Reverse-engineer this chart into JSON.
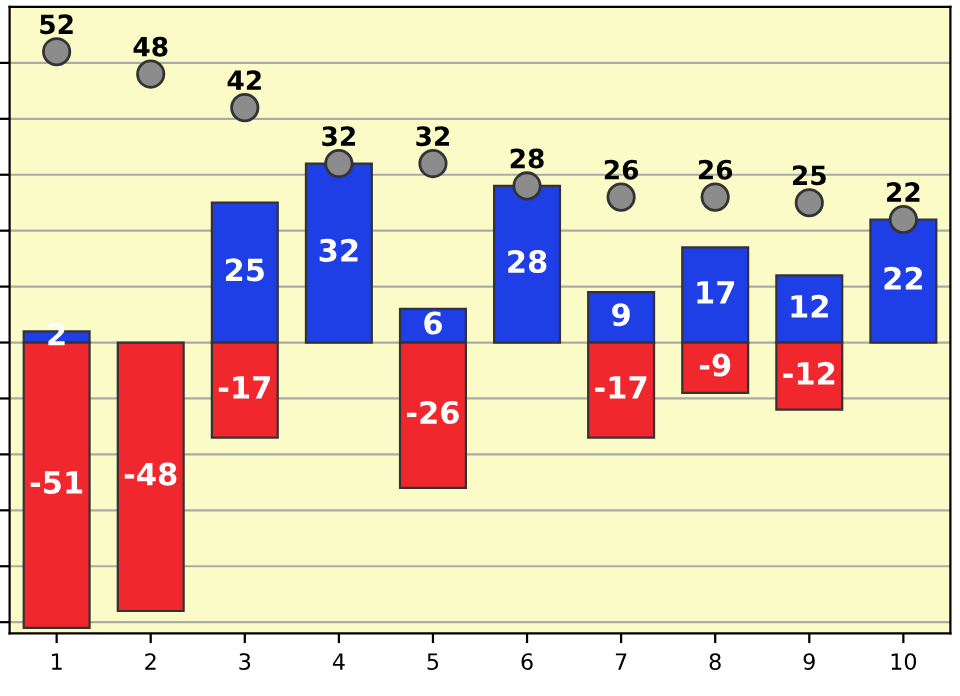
{
  "chart_data": {
    "type": "bar",
    "stacked": true,
    "categories": [
      "1",
      "2",
      "3",
      "4",
      "5",
      "6",
      "7",
      "8",
      "9",
      "10"
    ],
    "series": [
      {
        "color": "#1e3ee6",
        "values": [
          2,
          null,
          25,
          32,
          6,
          28,
          9,
          17,
          12,
          22
        ]
      },
      {
        "color": "#f0282d",
        "values": [
          -51,
          -48,
          -17,
          null,
          -26,
          null,
          -17,
          -9,
          -12,
          null
        ]
      },
      {
        "type": "scatter",
        "color": "#8c8c8c",
        "values": [
          52,
          48,
          42,
          32,
          32,
          28,
          26,
          26,
          25,
          22
        ]
      }
    ],
    "ylim": [
      -52,
      60
    ],
    "yticks": [
      {
        "value": -50,
        "label": null
      },
      {
        "value": -40,
        "label": null
      },
      {
        "value": -30,
        "label": null
      },
      {
        "value": -20,
        "label": null
      },
      {
        "value": -10,
        "label": null
      },
      {
        "value": 0,
        "label": null
      },
      {
        "value": 10,
        "label": null
      },
      {
        "value": 20,
        "label": null
      },
      {
        "value": 30,
        "label": null
      },
      {
        "value": 40,
        "label": null
      },
      {
        "value": 50,
        "label": null
      }
    ],
    "grid": "y",
    "data_labels": true,
    "marker": "circle",
    "tick_labels": "x"
  }
}
